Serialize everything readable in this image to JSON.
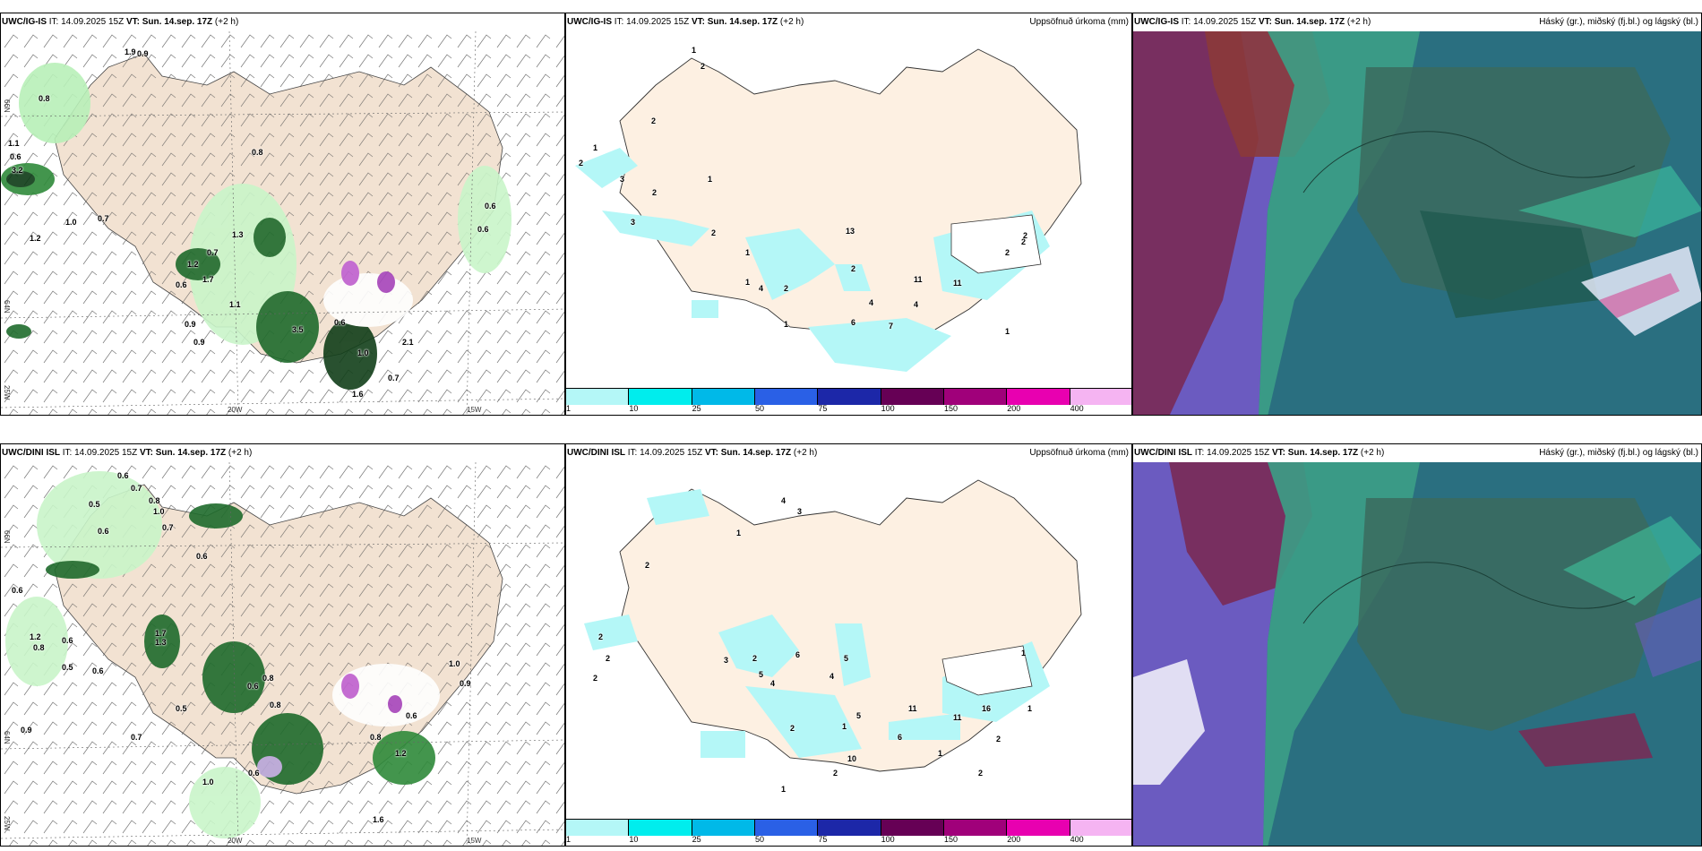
{
  "panels": [
    {
      "model": "UWC/IG-IS",
      "it_label": "IT:",
      "it": "14.09.2025 15Z",
      "vt_label": "VT:",
      "vt": "Sun. 14.sep. 17Z",
      "offset": "(+2 h)",
      "right": "",
      "lat_labels": [
        "66N",
        "64N"
      ],
      "lon_labels": [
        "25W",
        "20W",
        "15W"
      ],
      "labels": [
        "1.9",
        "0.9",
        "0.8",
        "1.1",
        "0.6",
        "3.2",
        "1.0",
        "0.7",
        "1.2",
        "0.8",
        "0.6",
        "0.6",
        "1.3",
        "0.7",
        "1.2",
        "1.7",
        "0.6",
        "1.1",
        "0.9",
        "0.9",
        "3.5",
        "1.0",
        "0.7",
        "1.6",
        "2.1",
        "0.6"
      ]
    },
    {
      "model": "UWC/IG-IS",
      "it_label": "IT:",
      "it": "14.09.2025 15Z",
      "vt_label": "VT:",
      "vt": "Sun. 14.sep. 17Z",
      "offset": "(+2 h)",
      "right": "Uppsöfnuð úrkoma (mm)",
      "labels": [
        "1",
        "2",
        "1",
        "2",
        "3",
        "2",
        "3",
        "2",
        "1",
        "2",
        "1",
        "1",
        "4",
        "2",
        "1",
        "13",
        "2",
        "4",
        "7",
        "6",
        "11",
        "4",
        "11",
        "2",
        "2",
        "1",
        "2"
      ]
    },
    {
      "model": "UWC/IG-IS",
      "it_label": "IT:",
      "it": "14.09.2025 15Z",
      "vt_label": "VT:",
      "vt": "Sun. 14.sep. 17Z",
      "offset": "(+2 h)",
      "right": "Háský (gr.), miðský (fj.bl.) og lágský (bl.)"
    },
    {
      "model": "UWC/DINI ISL",
      "it_label": "IT:",
      "it": "14.09.2025 15Z",
      "vt_label": "VT:",
      "vt": "Sun. 14.sep. 17Z",
      "offset": "(+2 h)",
      "right": "",
      "lat_labels": [
        "66N",
        "64N"
      ],
      "lon_labels": [
        "25W",
        "20W",
        "15W"
      ],
      "labels": [
        "0.6",
        "0.7",
        "0.5",
        "0.8",
        "1.0",
        "0.6",
        "0.7",
        "0.6",
        "0.6",
        "1.2",
        "0.8",
        "0.6",
        "0.5",
        "0.6",
        "0.9",
        "1.3",
        "0.7",
        "1.7",
        "0.5",
        "0.6",
        "1.0",
        "0.6",
        "0.8",
        "0.8",
        "1.6",
        "0.8",
        "1.2",
        "0.6",
        "0.9",
        "1.0"
      ]
    },
    {
      "model": "UWC/DINI ISL",
      "it_label": "IT:",
      "it": "14.09.2025 15Z",
      "vt_label": "VT:",
      "vt": "Sun. 14.sep. 17Z",
      "offset": "(+2 h)",
      "right": "Uppsöfnuð úrkoma (mm)",
      "labels": [
        "4",
        "3",
        "1",
        "2",
        "2",
        "2",
        "2",
        "3",
        "2",
        "5",
        "4",
        "6",
        "4",
        "5",
        "5",
        "1",
        "11",
        "11",
        "16",
        "6",
        "2",
        "1",
        "1",
        "2",
        "2",
        "1",
        "2",
        "10",
        "1"
      ]
    },
    {
      "model": "UWC/DINI ISL",
      "it_label": "IT:",
      "it": "14.09.2025 15Z",
      "vt_label": "VT:",
      "vt": "Sun. 14.sep. 17Z",
      "offset": "(+2 h)",
      "right": "Háský (gr.), miðský (fj.bl.) og lágský (bl.)"
    }
  ],
  "legend": {
    "ticks": [
      "1",
      "10",
      "25",
      "50",
      "75",
      "100",
      "150",
      "200",
      "400"
    ],
    "colors": [
      "#b4f7f7",
      "#00eded",
      "#00b9e8",
      "#2a60e6",
      "#1c27a8",
      "#660055",
      "#a0007a",
      "#e800b0",
      "#f5b4f2"
    ]
  }
}
